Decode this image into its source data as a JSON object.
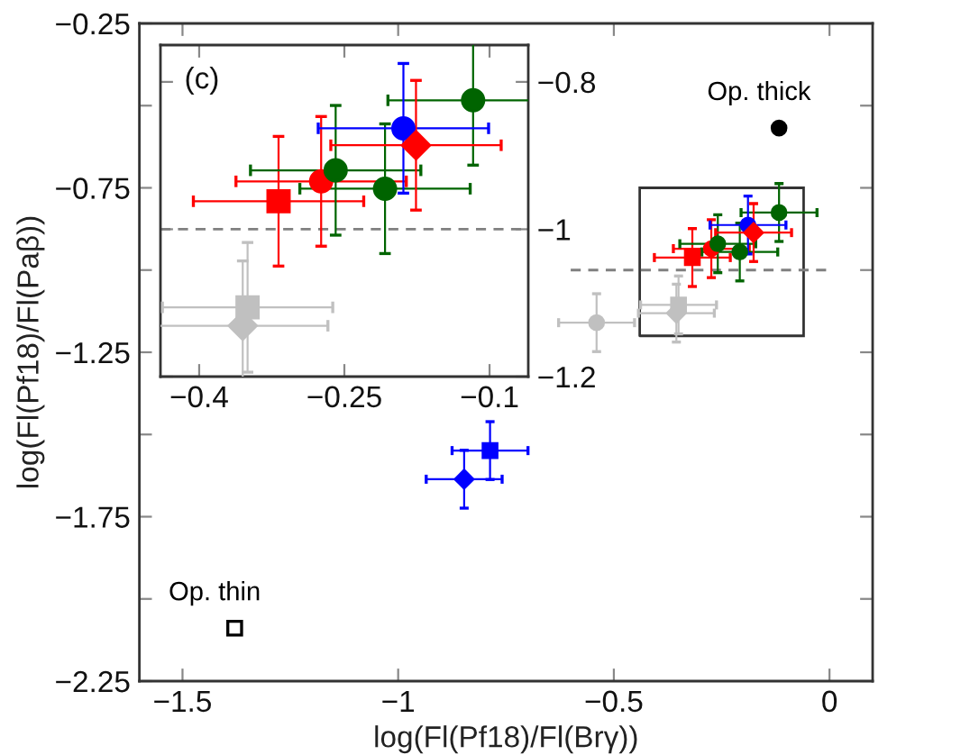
{
  "chart_data": [
    {
      "type": "scatter",
      "xlabel": "log(Fl(Pf18)/Fl(Brγ))",
      "ylabel": "log(Fl(Pf18)/Fl(Paβ))",
      "xlim": [
        -1.6,
        0.1
      ],
      "ylim": [
        -2.25,
        -0.25
      ],
      "xticks": [
        -1.5,
        -1,
        -0.5,
        0
      ],
      "yticks": [
        -0.25,
        {
          "value": -0.5,
          "label": null
        },
        -0.75,
        {
          "value": -1,
          "label": null
        },
        -1.25,
        {
          "value": -1.5,
          "label": null
        },
        -1.75,
        {
          "value": -2,
          "label": null
        },
        -2.25
      ],
      "series": [
        {
          "type": "line",
          "color": "#808080",
          "line_style": "dashed",
          "x": [
            -0.6,
            0
          ],
          "values": [
            -1,
            -1
          ]
        },
        {
          "color": "#c0c0c0",
          "marker": "circle",
          "x": [
            -0.54
          ],
          "values": [
            -1.16
          ],
          "xerrors": [
            0.088
          ],
          "errors": [
            0.088
          ]
        },
        {
          "color": "#c0c0c0",
          "marker": "diamond",
          "x": [
            -0.355
          ],
          "values": [
            -1.131
          ],
          "xerrors": [
            0.088
          ],
          "errors": [
            0.088
          ]
        },
        {
          "color": "#c0c0c0",
          "marker": "square",
          "x": [
            -0.35
          ],
          "values": [
            -1.106
          ],
          "xerrors": [
            0.088
          ],
          "errors": [
            0.088
          ]
        },
        {
          "color": "#ff0000",
          "marker": "square",
          "x": [
            -0.318
          ],
          "values": [
            -0.962
          ],
          "xerrors": [
            0.088
          ],
          "errors": [
            0.088
          ]
        },
        {
          "color": "#ff0000",
          "marker": "circle",
          "x": [
            -0.274
          ],
          "values": [
            -0.935
          ],
          "xerrors": [
            0.088
          ],
          "errors": [
            0.088
          ]
        },
        {
          "color": "#006400",
          "marker": "circle",
          "x": [
            -0.259,
            -0.208,
            -0.117
          ],
          "values": [
            -0.92,
            -0.945,
            -0.825
          ],
          "xerrors": [
            0.088,
            0.088,
            0.088
          ],
          "errors": [
            0.088,
            0.088,
            0.088
          ]
        },
        {
          "color": "#0000ff",
          "marker": "circle",
          "x": [
            -0.189
          ],
          "values": [
            -0.863
          ],
          "xerrors": [
            0.088
          ],
          "errors": [
            0.088
          ]
        },
        {
          "color": "#ff0000",
          "marker": "diamond",
          "x": [
            -0.176
          ],
          "values": [
            -0.886
          ],
          "xerrors": [
            0.088
          ],
          "errors": [
            0.088
          ]
        },
        {
          "color": "#0000ff",
          "marker": "square",
          "x": [
            -0.787
          ],
          "values": [
            -1.549
          ],
          "xerrors": [
            0.088
          ],
          "errors": [
            0.088
          ]
        },
        {
          "color": "#0000ff",
          "marker": "diamond",
          "x": [
            -0.847
          ],
          "values": [
            -1.636
          ],
          "xerrors": [
            0.088
          ],
          "errors": [
            0.088
          ]
        },
        {
          "name": "Op. thick",
          "color": "#000000",
          "marker": "circle",
          "x": [
            -0.117
          ],
          "values": [
            -0.568
          ]
        },
        {
          "name": "Op. thin",
          "color": "#000000",
          "marker": "square",
          "x": [
            -1.379
          ],
          "values": [
            -2.089
          ]
        }
      ]
    },
    {
      "type": "scatter",
      "annotations": [
        "(c)"
      ],
      "xlim": [
        -0.44,
        -0.06
      ],
      "ylim": [
        -1.2,
        -0.75
      ],
      "xticks": [
        -0.4,
        -0.25,
        -0.1
      ],
      "yticks": [
        -0.8,
        -1,
        -1.2
      ],
      "ref_lines": [
        {
          "axis": "y",
          "value": -1,
          "color": "#808080",
          "line_style": "dashed"
        }
      ],
      "series": [
        {
          "color": "#c0c0c0",
          "marker": "diamond",
          "x": [
            -0.355
          ],
          "values": [
            -1.131
          ],
          "xerrors": [
            0.088
          ],
          "errors": [
            0.088
          ]
        },
        {
          "color": "#c0c0c0",
          "marker": "square",
          "x": [
            -0.35
          ],
          "values": [
            -1.106
          ],
          "xerrors": [
            0.088
          ],
          "errors": [
            0.088
          ]
        },
        {
          "color": "#ff0000",
          "marker": "square",
          "x": [
            -0.318
          ],
          "values": [
            -0.962
          ],
          "xerrors": [
            0.088
          ],
          "errors": [
            0.088
          ]
        },
        {
          "color": "#ff0000",
          "marker": "circle",
          "x": [
            -0.274
          ],
          "values": [
            -0.935
          ],
          "xerrors": [
            0.088
          ],
          "errors": [
            0.088
          ]
        },
        {
          "color": "#006400",
          "marker": "circle",
          "x": [
            -0.259,
            -0.208,
            -0.117
          ],
          "values": [
            -0.92,
            -0.945,
            -0.825
          ],
          "xerrors": [
            0.088,
            0.088,
            0.088
          ],
          "errors": [
            0.088,
            0.088,
            0.088
          ]
        },
        {
          "color": "#0000ff",
          "marker": "circle",
          "x": [
            -0.189
          ],
          "values": [
            -0.863
          ],
          "xerrors": [
            0.088
          ],
          "errors": [
            0.088
          ]
        },
        {
          "color": "#ff0000",
          "marker": "diamond",
          "x": [
            -0.176
          ],
          "values": [
            -0.886
          ],
          "xerrors": [
            0.088
          ],
          "errors": [
            0.088
          ]
        }
      ]
    }
  ]
}
